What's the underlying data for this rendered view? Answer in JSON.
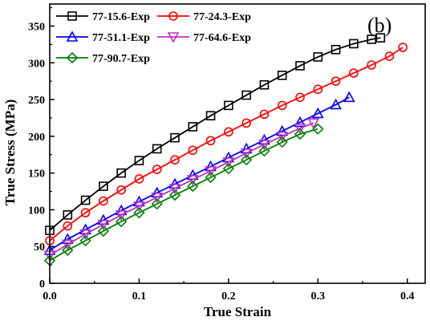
{
  "chart_data": {
    "type": "line",
    "panel_label": "(b)",
    "xlabel": "True Strain",
    "ylabel": "True Stress (MPa)",
    "xlim": [
      0.0,
      0.42
    ],
    "ylim": [
      0,
      380
    ],
    "xticks": [
      0.0,
      0.1,
      0.2,
      0.3,
      0.4
    ],
    "yticks": [
      0,
      50,
      100,
      150,
      200,
      250,
      300,
      350
    ],
    "xtick_labels": [
      "0.0",
      "0.1",
      "0.2",
      "0.3",
      "0.4"
    ],
    "ytick_labels": [
      "0",
      "50",
      "100",
      "150",
      "200",
      "250",
      "300",
      "350"
    ],
    "legend_position": "top-left",
    "series": [
      {
        "name": "77-15.6-Exp",
        "color": "#000000",
        "marker": "square",
        "x": [
          0.0,
          0.02,
          0.04,
          0.06,
          0.08,
          0.1,
          0.12,
          0.14,
          0.16,
          0.18,
          0.2,
          0.22,
          0.24,
          0.26,
          0.28,
          0.3,
          0.32,
          0.34,
          0.36,
          0.37
        ],
        "y": [
          72,
          93,
          113,
          132,
          150,
          167,
          183,
          198,
          213,
          228,
          242,
          256,
          270,
          283,
          296,
          308,
          318,
          326,
          332,
          334
        ]
      },
      {
        "name": "77-24.3-Exp",
        "color": "#ff0000",
        "marker": "circle",
        "x": [
          0.0,
          0.02,
          0.04,
          0.06,
          0.08,
          0.1,
          0.12,
          0.14,
          0.16,
          0.18,
          0.2,
          0.22,
          0.24,
          0.26,
          0.28,
          0.3,
          0.32,
          0.34,
          0.36,
          0.38,
          0.395
        ],
        "y": [
          58,
          78,
          96,
          112,
          127,
          142,
          155,
          168,
          181,
          194,
          206,
          218,
          230,
          242,
          253,
          264,
          275,
          286,
          297,
          309,
          321
        ]
      },
      {
        "name": "77-51.1-Exp",
        "color": "#0000ff",
        "marker": "triangle-up",
        "x": [
          0.0,
          0.02,
          0.04,
          0.06,
          0.08,
          0.1,
          0.12,
          0.14,
          0.16,
          0.18,
          0.2,
          0.22,
          0.24,
          0.26,
          0.28,
          0.3,
          0.32,
          0.335
        ],
        "y": [
          45,
          60,
          73,
          86,
          99,
          111,
          123,
          135,
          147,
          159,
          171,
          183,
          195,
          207,
          219,
          231,
          243,
          253
        ]
      },
      {
        "name": "77-64.6-Exp",
        "color": "#c030c0",
        "marker": "triangle-down",
        "x": [
          0.0,
          0.02,
          0.04,
          0.06,
          0.08,
          0.1,
          0.12,
          0.14,
          0.16,
          0.18,
          0.2,
          0.22,
          0.24,
          0.26,
          0.28,
          0.295
        ],
        "y": [
          38,
          53,
          67,
          80,
          93,
          105,
          117,
          129,
          141,
          153,
          165,
          177,
          189,
          200,
          211,
          218
        ]
      },
      {
        "name": "77-90.7-Exp",
        "color": "#008000",
        "marker": "diamond",
        "x": [
          0.0,
          0.02,
          0.04,
          0.06,
          0.08,
          0.1,
          0.12,
          0.14,
          0.16,
          0.18,
          0.2,
          0.22,
          0.24,
          0.26,
          0.28,
          0.3
        ],
        "y": [
          31,
          45,
          58,
          71,
          84,
          96,
          108,
          120,
          132,
          144,
          156,
          168,
          180,
          192,
          203,
          210
        ]
      }
    ]
  }
}
